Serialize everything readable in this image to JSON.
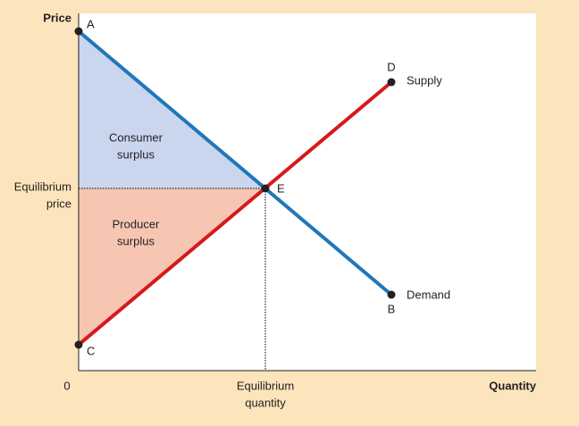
{
  "axes": {
    "y_label": "Price",
    "x_label": "Quantity",
    "origin": "0"
  },
  "points": {
    "A": "A",
    "B": "B",
    "C": "C",
    "D": "D",
    "E": "E"
  },
  "curves": {
    "supply": "Supply",
    "demand": "Demand"
  },
  "regions": {
    "consumer": [
      "Consumer",
      "surplus"
    ],
    "producer": [
      "Producer",
      "surplus"
    ]
  },
  "equilibrium": {
    "price": [
      "Equilibrium",
      "price"
    ],
    "quantity": [
      "Equilibrium",
      "quantity"
    ]
  }
}
